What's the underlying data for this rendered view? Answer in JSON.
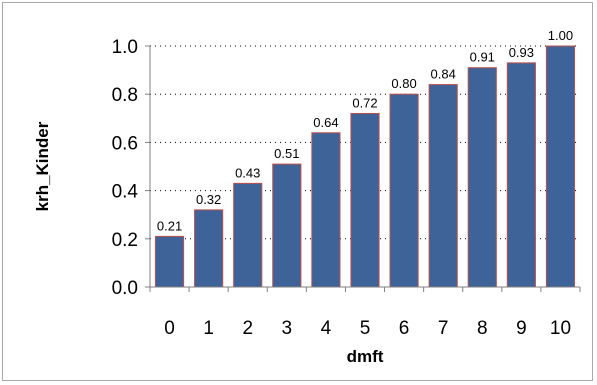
{
  "chart_data": {
    "type": "bar",
    "title": "",
    "xlabel": "dmft",
    "ylabel": "krh_Kinder",
    "categories": [
      "0",
      "1",
      "2",
      "3",
      "4",
      "5",
      "6",
      "7",
      "8",
      "9",
      "10"
    ],
    "values": [
      0.21,
      0.32,
      0.43,
      0.51,
      0.64,
      0.72,
      0.8,
      0.84,
      0.91,
      0.93,
      1.0
    ],
    "value_labels": [
      "0.21",
      "0.32",
      "0.43",
      "0.51",
      "0.64",
      "0.72",
      "0.80",
      "0.84",
      "0.91",
      "0.93",
      "1.00"
    ],
    "ylim": [
      0,
      1.0
    ],
    "yticks": [
      0.0,
      0.2,
      0.4,
      0.6,
      0.8,
      1.0
    ],
    "ytick_labels": [
      "0.0",
      "0.2",
      "0.4",
      "0.6",
      "0.8",
      "1.0"
    ],
    "grid": "horizontal-dotted",
    "legend": "none",
    "colors": {
      "bar_fill": "#3d6399",
      "bar_edge": "#c0504d",
      "axis": "#808080",
      "grid": "#000000",
      "frame": "#a9a9a9"
    }
  }
}
